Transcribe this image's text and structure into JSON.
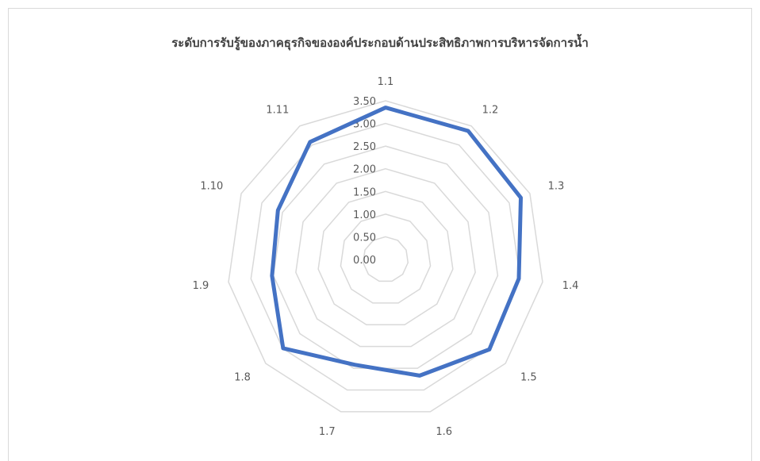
{
  "chart_data": {
    "type": "radar",
    "title": "ระดับการรับรู้ของภาคธุรกิจขององค์ประกอบด้านประสิทธิภาพการบริหารจัดการน้ำ",
    "categories": [
      "1.1",
      "1.2",
      "1.3",
      "1.4",
      "1.5",
      "1.6",
      "1.7",
      "1.8",
      "1.9",
      "1.10",
      "1.11"
    ],
    "series": [
      {
        "values": [
          3.35,
          3.37,
          3.28,
          2.97,
          3.03,
          2.67,
          2.42,
          2.99,
          2.53,
          2.61,
          3.08
        ]
      }
    ],
    "rlim": [
      0,
      3.5
    ],
    "ticks": [
      "0.00",
      "0.50",
      "1.00",
      "1.50",
      "2.00",
      "2.50",
      "3.00",
      "3.50"
    ],
    "colors": {
      "series": "#4472c4",
      "grid": "#d9d9d9"
    },
    "grid": true,
    "legend": "none"
  }
}
